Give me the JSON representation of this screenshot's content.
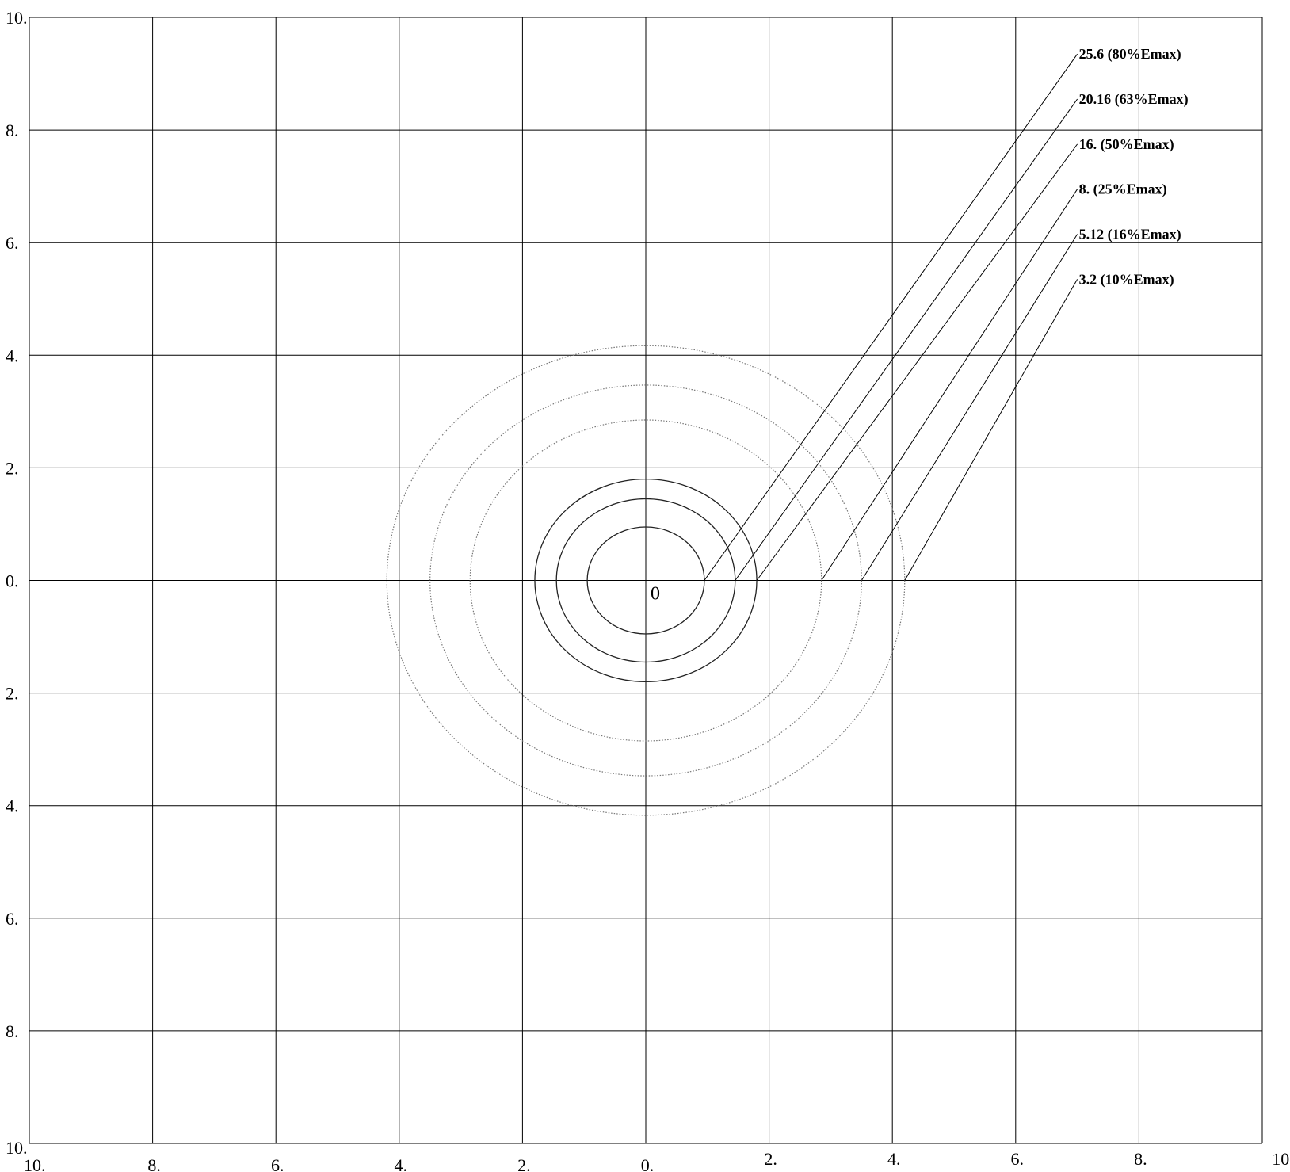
{
  "chart_data": {
    "type": "contour",
    "xlim": [
      -10,
      10
    ],
    "ylim": [
      -10,
      10
    ],
    "grid": true,
    "x_ticks": [
      -10,
      -8,
      -6,
      -4,
      -2,
      0,
      2,
      4,
      6,
      8,
      10
    ],
    "y_ticks": [
      10,
      8,
      6,
      4,
      2,
      0,
      -2,
      -4,
      -6,
      -8,
      -10
    ],
    "x_tick_labels": [
      "10.",
      "8.",
      "6.",
      "4.",
      "2.",
      "0.",
      "2.",
      "4.",
      "6.",
      "8.",
      "10."
    ],
    "y_tick_labels": [
      "10.",
      "8.",
      "6.",
      "4.",
      "2.",
      "0.",
      "2.",
      "4.",
      "6.",
      "8.",
      "10."
    ],
    "origin_label": "0",
    "contours": [
      {
        "level": "25.6",
        "label": "25.6  (80%Emax)",
        "rx": 0.95,
        "ry": 0.95,
        "style": "solid"
      },
      {
        "level": "20.16",
        "label": "20.16  (63%Emax)",
        "rx": 1.45,
        "ry": 1.45,
        "style": "solid"
      },
      {
        "level": "16.",
        "label": "16.  (50%Emax)",
        "rx": 1.8,
        "ry": 1.8,
        "style": "solid"
      },
      {
        "level": "8.",
        "label": "8.  (25%Emax)",
        "rx": 2.85,
        "ry": 2.85,
        "style": "dotted"
      },
      {
        "level": "5.12",
        "label": "5.12  (16%Emax)",
        "rx": 3.5,
        "ry": 3.47,
        "style": "dotted"
      },
      {
        "level": "3.2",
        "label": "3.2  (10%Emax)",
        "rx": 4.2,
        "ry": 4.17,
        "style": "dotted"
      }
    ],
    "label_anchor_x": 7.0,
    "label_anchor_y": [
      9.35,
      8.55,
      7.75,
      6.95,
      6.15,
      5.35
    ]
  }
}
